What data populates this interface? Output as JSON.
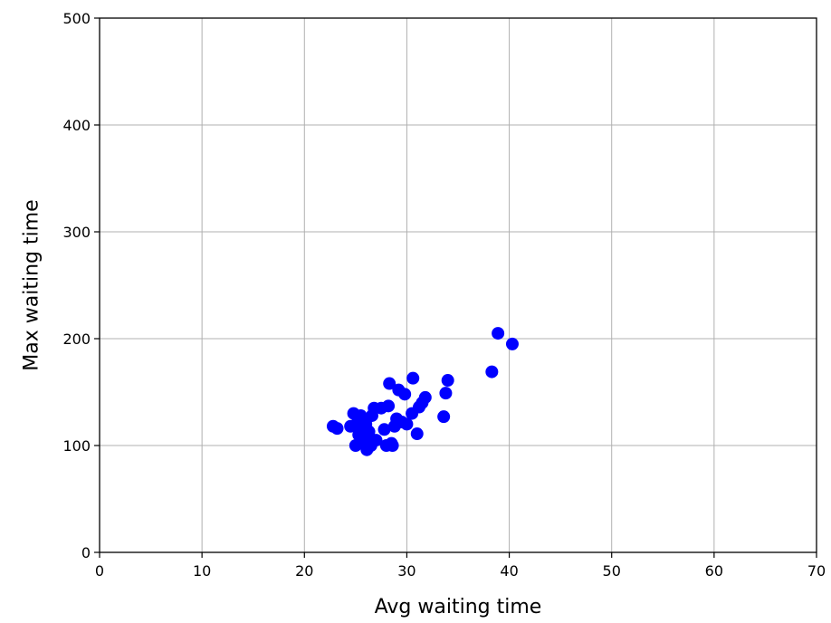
{
  "chart_data": {
    "type": "scatter",
    "title": "",
    "xlabel": "Avg waiting time",
    "ylabel": "Max waiting time",
    "xlim": [
      0,
      70
    ],
    "ylim": [
      0,
      500
    ],
    "xticks": [
      0,
      10,
      20,
      30,
      40,
      50,
      60,
      70
    ],
    "yticks": [
      0,
      100,
      200,
      300,
      400,
      500
    ],
    "grid": true,
    "legend": "none",
    "marker_color": "#0000ff",
    "points": [
      {
        "x": 22.8,
        "y": 118
      },
      {
        "x": 23.2,
        "y": 116
      },
      {
        "x": 24.5,
        "y": 118
      },
      {
        "x": 24.8,
        "y": 130
      },
      {
        "x": 25.0,
        "y": 100
      },
      {
        "x": 25.2,
        "y": 122
      },
      {
        "x": 25.3,
        "y": 110
      },
      {
        "x": 25.5,
        "y": 128
      },
      {
        "x": 25.6,
        "y": 115
      },
      {
        "x": 25.8,
        "y": 104
      },
      {
        "x": 25.9,
        "y": 123
      },
      {
        "x": 26.0,
        "y": 120
      },
      {
        "x": 26.1,
        "y": 96
      },
      {
        "x": 26.2,
        "y": 108
      },
      {
        "x": 26.3,
        "y": 113
      },
      {
        "x": 26.5,
        "y": 100
      },
      {
        "x": 26.6,
        "y": 128
      },
      {
        "x": 26.8,
        "y": 135
      },
      {
        "x": 27.0,
        "y": 105
      },
      {
        "x": 27.5,
        "y": 135
      },
      {
        "x": 27.8,
        "y": 115
      },
      {
        "x": 28.0,
        "y": 100
      },
      {
        "x": 28.2,
        "y": 137
      },
      {
        "x": 28.3,
        "y": 158
      },
      {
        "x": 28.5,
        "y": 102
      },
      {
        "x": 28.6,
        "y": 100
      },
      {
        "x": 28.8,
        "y": 118
      },
      {
        "x": 29.0,
        "y": 125
      },
      {
        "x": 29.2,
        "y": 152
      },
      {
        "x": 29.5,
        "y": 122
      },
      {
        "x": 29.8,
        "y": 148
      },
      {
        "x": 30.0,
        "y": 120
      },
      {
        "x": 30.5,
        "y": 130
      },
      {
        "x": 30.6,
        "y": 163
      },
      {
        "x": 31.0,
        "y": 111
      },
      {
        "x": 31.2,
        "y": 136
      },
      {
        "x": 31.5,
        "y": 140
      },
      {
        "x": 31.8,
        "y": 145
      },
      {
        "x": 33.6,
        "y": 127
      },
      {
        "x": 33.8,
        "y": 149
      },
      {
        "x": 34.0,
        "y": 161
      },
      {
        "x": 38.3,
        "y": 169
      },
      {
        "x": 38.9,
        "y": 205
      },
      {
        "x": 40.3,
        "y": 195
      }
    ]
  }
}
